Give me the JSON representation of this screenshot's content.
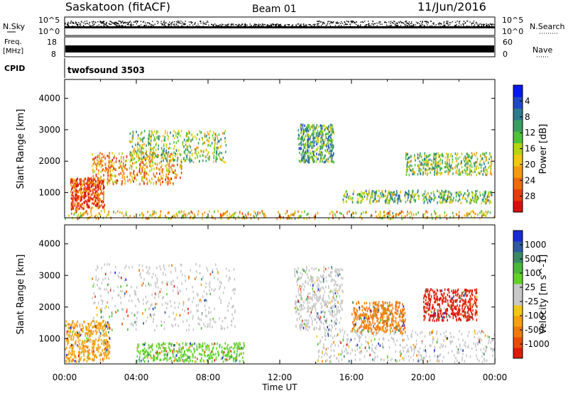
{
  "header": {
    "station": "Saskatoon (fitACF)",
    "beam": "Beam 01",
    "date": "11/Jun/2016"
  },
  "side_labels": {
    "nsky": "N.Sky",
    "nsearch": "N.Search",
    "freq_line1": "Freq.",
    "freq_line2": "[MHz]",
    "nave": "Nave",
    "cpid": "CPID",
    "cpid_value": "twofsound 3503",
    "noise_tick_high": "10^5",
    "noise_tick_low": "10^0",
    "freq_tick_high": "18",
    "freq_tick_low": "8",
    "nave_tick_high": "60",
    "nave_tick_low": "0"
  },
  "chart_data": [
    {
      "type": "heatmap",
      "panel": "power",
      "ylabel": "Slant Range [km]",
      "xlabel": "Time UT",
      "xticks": [
        "00:00",
        "04:00",
        "08:00",
        "12:00",
        "16:00",
        "20:00",
        "00:00"
      ],
      "yticks": [
        1000,
        2000,
        3000,
        4000
      ],
      "ylim": [
        200,
        4600
      ],
      "colorbar": {
        "label": "Power [dB]",
        "ticks": [
          "4",
          "8",
          "12",
          "16",
          "20",
          "24",
          "28"
        ],
        "colors": [
          "#0a19f0",
          "#2048c8",
          "#2e7a8e",
          "#3a9e62",
          "#4fc23a",
          "#b4d414",
          "#f0c814",
          "#f59a10",
          "#f06a0c",
          "#e83a0a",
          "#d80f0f"
        ]
      },
      "regions": [
        {
          "t0": 0.3,
          "t1": 2.2,
          "r0": 500,
          "r1": 1500,
          "level": 0.85
        },
        {
          "t0": 1.5,
          "t1": 6.5,
          "r0": 1300,
          "r1": 2300,
          "level": 0.7
        },
        {
          "t0": 3.5,
          "t1": 9.0,
          "r0": 2000,
          "r1": 3000,
          "level": 0.45
        },
        {
          "t0": 13.0,
          "t1": 15.0,
          "r0": 2000,
          "r1": 3200,
          "level": 0.35
        },
        {
          "t0": 15.5,
          "t1": 23.8,
          "r0": 700,
          "r1": 1100,
          "level": 0.4
        },
        {
          "t0": 19.0,
          "t1": 23.8,
          "r0": 1600,
          "r1": 2300,
          "level": 0.45
        },
        {
          "t0": 0.0,
          "t1": 24.0,
          "r0": 200,
          "r1": 450,
          "level": 0.6
        }
      ]
    },
    {
      "type": "heatmap",
      "panel": "velocity",
      "ylabel": "Slant Range [km]",
      "xlabel": "Time UT",
      "xticks": [
        "00:00",
        "04:00",
        "08:00",
        "12:00",
        "16:00",
        "20:00",
        "00:00"
      ],
      "yticks": [
        1000,
        2000,
        3000,
        4000
      ],
      "ylim": [
        200,
        4600
      ],
      "colorbar": {
        "label": "Velocity [m s^-1]",
        "ticks": [
          "1000",
          "500",
          "100",
          "25",
          "-25",
          "-100",
          "-500",
          "-1000"
        ],
        "colors": [
          "#1a2ad8",
          "#2e5aa0",
          "#3a8a64",
          "#49b83a",
          "#62d22a",
          "#c8c8c8",
          "#c8c8c8",
          "#f0c814",
          "#f5a010",
          "#f07a0c",
          "#ec4a0a",
          "#e01a0a"
        ]
      },
      "regions": [
        {
          "t0": 1.5,
          "t1": 9.5,
          "r0": 1300,
          "r1": 3400,
          "color": "#c8c8c8"
        },
        {
          "t0": 12.8,
          "t1": 15.5,
          "r0": 1300,
          "r1": 3300,
          "color": "#c8c8c8"
        },
        {
          "t0": 0.0,
          "t1": 2.5,
          "r0": 300,
          "r1": 1600,
          "color": "#f5a010"
        },
        {
          "t0": 4.0,
          "t1": 10.0,
          "r0": 300,
          "r1": 900,
          "color": "#62d22a"
        },
        {
          "t0": 16.0,
          "t1": 19.0,
          "r0": 1200,
          "r1": 2200,
          "color": "#f07a0c"
        },
        {
          "t0": 20.0,
          "t1": 23.0,
          "r0": 1600,
          "r1": 2600,
          "color": "#e01a0a"
        },
        {
          "t0": 14.0,
          "t1": 24.0,
          "r0": 300,
          "r1": 1300,
          "color": "#c8c8c8"
        }
      ]
    }
  ]
}
